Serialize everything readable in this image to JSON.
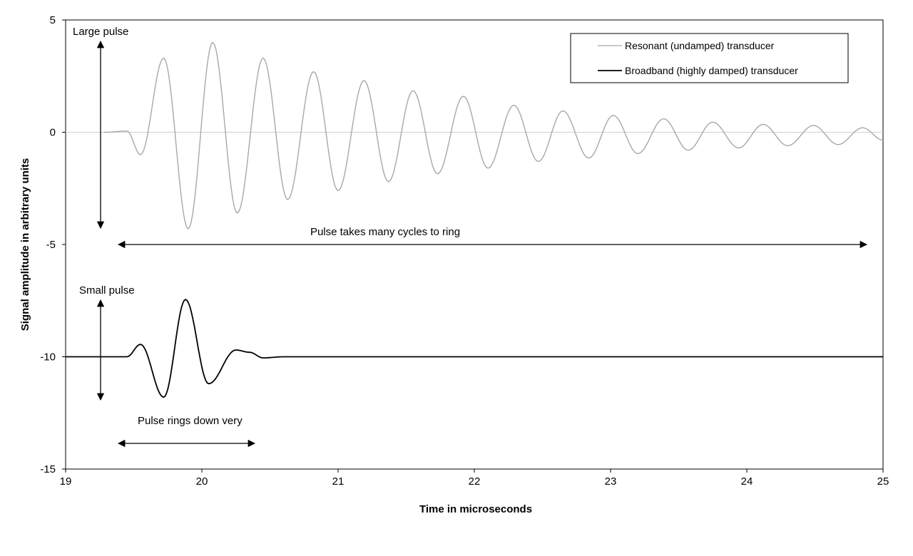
{
  "chart_data": {
    "type": "line",
    "xlabel": "Time in microseconds",
    "ylabel": "Signal amplitude in arbitrary units",
    "xlim": [
      19,
      25
    ],
    "ylim": [
      -15,
      5
    ],
    "x_ticks": [
      "19",
      "20",
      "21",
      "22",
      "23",
      "24",
      "25"
    ],
    "y_ticks": [
      "5",
      "0",
      "-5",
      "-10",
      "-15"
    ],
    "grid": false,
    "legend_position": "top-right",
    "series": [
      {
        "name": "Resonant (undamped) transducer",
        "color": "#a8a8a8",
        "points": [
          [
            19.28,
            0.0
          ],
          [
            19.45,
            0.05
          ],
          [
            19.55,
            -1.0
          ],
          [
            19.72,
            3.3
          ],
          [
            19.9,
            -4.3
          ],
          [
            20.08,
            4.0
          ],
          [
            20.26,
            -3.6
          ],
          [
            20.45,
            3.3
          ],
          [
            20.63,
            -3.0
          ],
          [
            20.82,
            2.7
          ],
          [
            21.0,
            -2.6
          ],
          [
            21.19,
            2.3
          ],
          [
            21.37,
            -2.2
          ],
          [
            21.55,
            1.85
          ],
          [
            21.73,
            -1.85
          ],
          [
            21.92,
            1.6
          ],
          [
            22.1,
            -1.6
          ],
          [
            22.29,
            1.2
          ],
          [
            22.47,
            -1.3
          ],
          [
            22.65,
            0.95
          ],
          [
            22.84,
            -1.15
          ],
          [
            23.02,
            0.75
          ],
          [
            23.2,
            -0.95
          ],
          [
            23.39,
            0.6
          ],
          [
            23.57,
            -0.8
          ],
          [
            23.75,
            0.45
          ],
          [
            23.94,
            -0.7
          ],
          [
            24.12,
            0.35
          ],
          [
            24.3,
            -0.6
          ],
          [
            24.49,
            0.3
          ],
          [
            24.67,
            -0.55
          ],
          [
            24.85,
            0.2
          ],
          [
            25.0,
            -0.35
          ]
        ]
      },
      {
        "name": "Broadband (highly damped) transducer",
        "color": "#000000",
        "points": [
          [
            19.0,
            -10.0
          ],
          [
            19.45,
            -10.0
          ],
          [
            19.55,
            -9.45
          ],
          [
            19.72,
            -11.8
          ],
          [
            19.88,
            -7.45
          ],
          [
            20.05,
            -11.2
          ],
          [
            20.25,
            -9.7
          ],
          [
            20.35,
            -9.8
          ],
          [
            20.45,
            -10.05
          ],
          [
            20.6,
            -10.0
          ],
          [
            25.0,
            -10.0
          ]
        ]
      }
    ],
    "annotations": {
      "large_pulse": "Large pulse",
      "small_pulse": "Small pulse",
      "many_cycles": "Pulse takes many cycles to ring",
      "rings_down": "Pulse rings down very"
    }
  }
}
